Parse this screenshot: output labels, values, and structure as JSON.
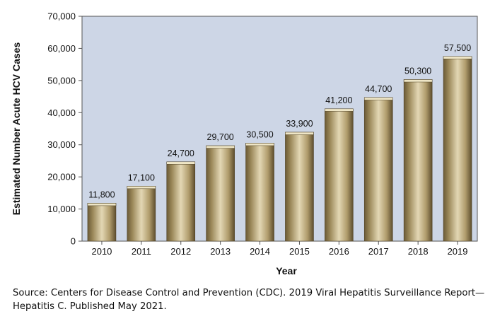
{
  "chart_data": {
    "type": "bar",
    "title": "",
    "xlabel": "Year",
    "ylabel": "Estimated Number  Acute HCV Cases",
    "categories": [
      "2010",
      "2011",
      "2012",
      "2013",
      "2014",
      "2015",
      "2016",
      "2017",
      "2018",
      "2019"
    ],
    "values": [
      11800,
      17100,
      24700,
      29700,
      30500,
      33900,
      41200,
      44700,
      50300,
      57500
    ],
    "data_labels": [
      "11,800",
      "17,100",
      "24,700",
      "29,700",
      "30,500",
      "33,900",
      "41,200",
      "44,700",
      "50,300",
      "57,500"
    ],
    "ylim": [
      0,
      70000
    ],
    "yticks": [
      0,
      10000,
      20000,
      30000,
      40000,
      50000,
      60000,
      70000
    ],
    "ytick_labels": [
      "0",
      "10,000",
      "20,000",
      "30,000",
      "40,000",
      "50,000",
      "60,000",
      "70,000"
    ],
    "grid": false,
    "legend": false,
    "colors": {
      "plot_background": "#cdd6e6",
      "bar_dark": "#6b5a36",
      "bar_mid": "#b9a77d",
      "bar_light": "#e3d7b4",
      "bar_top": "#efe6c6"
    }
  },
  "source_note": "Source: Centers for Disease Control and Prevention (CDC). 2019 Viral Hepatitis Surveillance Report—Hepatitis C. Published May 2021."
}
